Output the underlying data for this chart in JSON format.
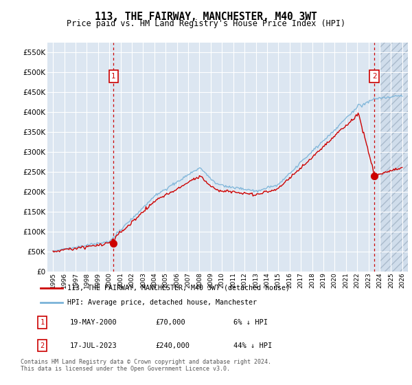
{
  "title": "113, THE FAIRWAY, MANCHESTER, M40 3WT",
  "subtitle": "Price paid vs. HM Land Registry's House Price Index (HPI)",
  "legend_line1": "113, THE FAIRWAY, MANCHESTER, M40 3WT (detached house)",
  "legend_line2": "HPI: Average price, detached house, Manchester",
  "annotation_note": "Contains HM Land Registry data © Crown copyright and database right 2024.\nThis data is licensed under the Open Government Licence v3.0.",
  "table": [
    {
      "num": "1",
      "date": "19-MAY-2000",
      "price": "£70,000",
      "hpi": "6% ↓ HPI"
    },
    {
      "num": "2",
      "date": "17-JUL-2023",
      "price": "£240,000",
      "hpi": "44% ↓ HPI"
    }
  ],
  "sale1_year": 2000.38,
  "sale1_price": 70000,
  "sale2_year": 2023.54,
  "sale2_price": 240000,
  "ylim": [
    0,
    575000
  ],
  "yticks": [
    0,
    50000,
    100000,
    150000,
    200000,
    250000,
    300000,
    350000,
    400000,
    450000,
    500000,
    550000
  ],
  "xlim_start": 1994.5,
  "xlim_end": 2026.5,
  "background_color": "#dce6f1",
  "grid_color": "#ffffff",
  "red_line_color": "#cc0000",
  "blue_line_color": "#7ab3d8",
  "dashed_line_color": "#cc0000",
  "hatch_start": 2024.08,
  "title_fontsize": 11,
  "subtitle_fontsize": 9
}
